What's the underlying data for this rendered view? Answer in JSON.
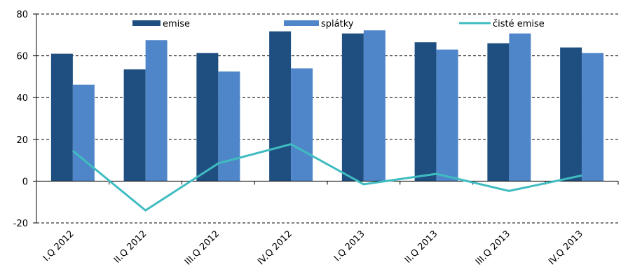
{
  "chart_data": {
    "type": "bar",
    "categories": [
      "I.Q 2012",
      "II.Q 2012",
      "III.Q 2012",
      "IV.Q 2012",
      "I.Q 2013",
      "II.Q 2013",
      "III.Q 2013",
      "IV.Q 2013"
    ],
    "series": [
      {
        "name": "emise",
        "type": "bar",
        "color": "#1f4e80",
        "values": [
          61,
          53.5,
          61.3,
          71.7,
          70.7,
          66.5,
          66,
          64
        ]
      },
      {
        "name": "splátky",
        "type": "bar",
        "color": "#4f86c9",
        "values": [
          46.2,
          67.5,
          52.5,
          54,
          72.2,
          63,
          70.7,
          61.3
        ]
      },
      {
        "name": "čisté emise",
        "type": "line",
        "color": "#3fbcc0",
        "values": [
          14.5,
          -14,
          8.5,
          17.7,
          -1.5,
          3.5,
          -4.7,
          2.7
        ]
      }
    ],
    "yticks": [
      "-20",
      "0",
      "20",
      "40",
      "60",
      "80"
    ],
    "ylim": [
      -20,
      80
    ],
    "grid": "dashed horizontal",
    "legend": "top",
    "title": "",
    "xlabel": "",
    "ylabel": ""
  }
}
